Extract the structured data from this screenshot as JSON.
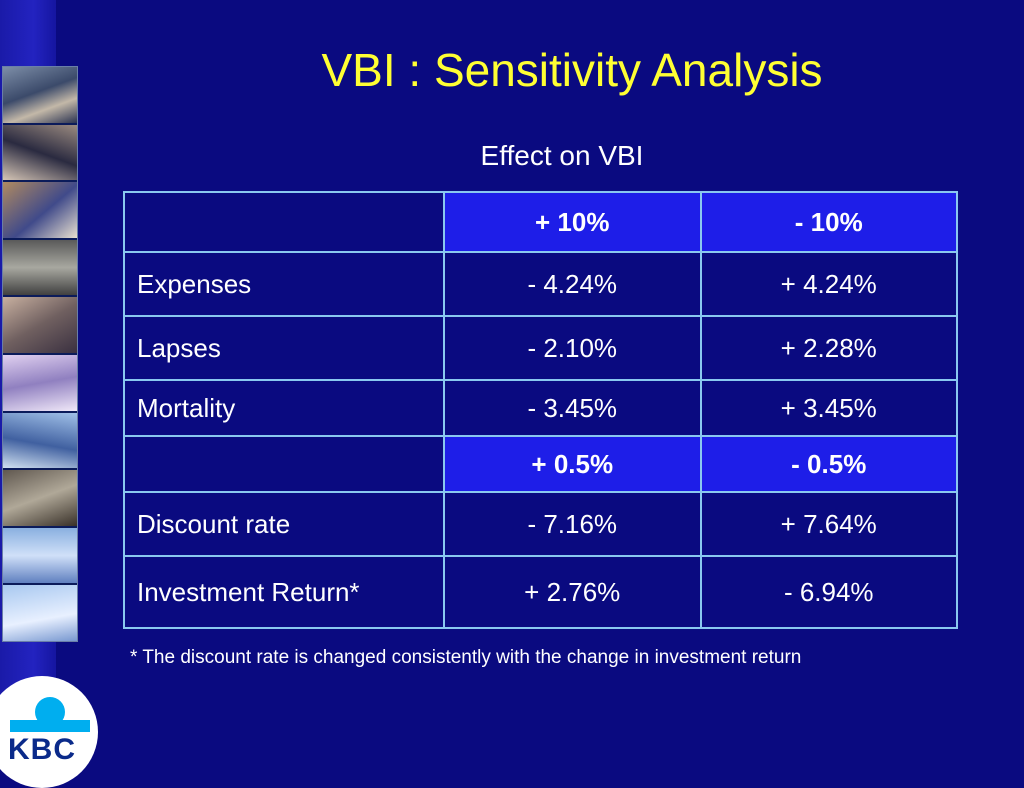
{
  "slide": {
    "title": "VBI : Sensitivity Analysis",
    "subtitle": "Effect on VBI",
    "footnote": "* The discount rate is changed consistently with the change in investment return"
  },
  "table": {
    "header1": [
      "",
      "+ 10%",
      "- 10%"
    ],
    "header2": [
      "",
      "+ 0.5%",
      "- 0.5%"
    ],
    "rows1": [
      [
        "Expenses",
        "- 4.24%",
        "+ 4.24%"
      ],
      [
        "Lapses",
        "- 2.10%",
        "+ 2.28%"
      ],
      [
        "Mortality",
        "- 3.45%",
        "+ 3.45%"
      ]
    ],
    "rows2": [
      [
        "Discount rate",
        "- 7.16%",
        "+ 7.64%"
      ],
      [
        "Investment Return*",
        "+ 2.76%",
        "- 6.94%"
      ]
    ]
  },
  "logo": {
    "text": "KBC"
  },
  "colors": {
    "background": "#0a0a80",
    "title": "#ffff33",
    "header_fill": "#1e1ee8",
    "border": "#8ac8f0",
    "logo_blue": "#00aeef"
  }
}
